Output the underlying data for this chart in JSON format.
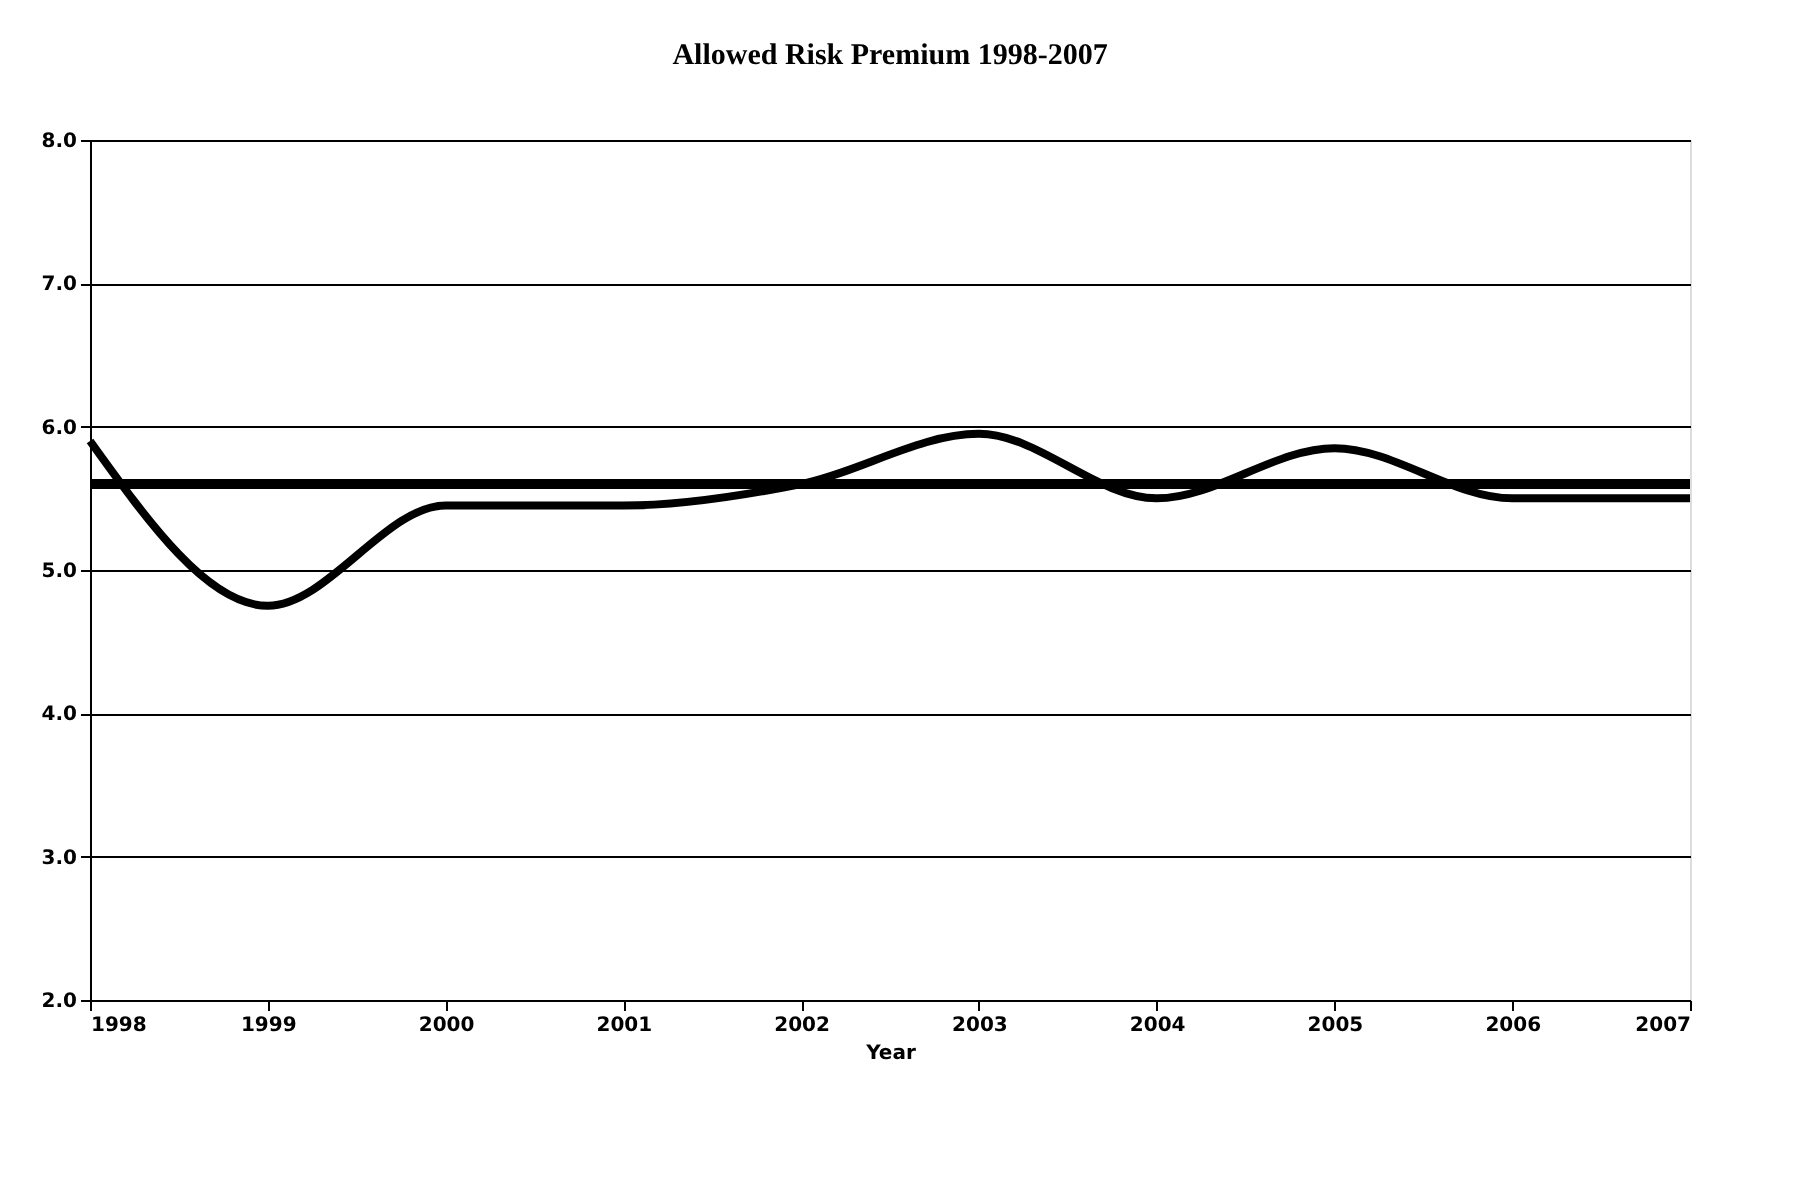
{
  "chart_data": {
    "type": "line",
    "title": "Allowed Risk Premium 1998-2007",
    "xlabel": "Year",
    "x": [
      1998,
      1999,
      2000,
      2001,
      2002,
      2003,
      2004,
      2005,
      2006,
      2007
    ],
    "series": [
      {
        "color": "#000000",
        "values": [
          5.9,
          4.75,
          5.45,
          5.45,
          5.6,
          5.95,
          5.5,
          5.85,
          5.5,
          5.5
        ]
      }
    ],
    "xlim": [
      1998,
      2007
    ],
    "xticks": [
      1998,
      1999,
      2000,
      2001,
      2002,
      2003,
      2004,
      2005,
      2006,
      2007
    ],
    "ylim": [
      2.0,
      8.0
    ],
    "yticks": [
      {
        "value": 2,
        "label": "2.0"
      },
      {
        "value": 3,
        "label": "3.0"
      },
      {
        "value": 4,
        "label": "4.0"
      },
      {
        "value": 5,
        "label": "5.0"
      },
      {
        "value": 6,
        "label": "6.0"
      },
      {
        "value": 7,
        "label": "7.0"
      },
      {
        "value": 8,
        "label": "8.0"
      }
    ],
    "ref_lines": [
      {
        "axis": "y",
        "value": 5.6,
        "color": "#000000",
        "line_style": "solid"
      }
    ],
    "grid": "y",
    "marker": "none",
    "line_style": "solid"
  }
}
